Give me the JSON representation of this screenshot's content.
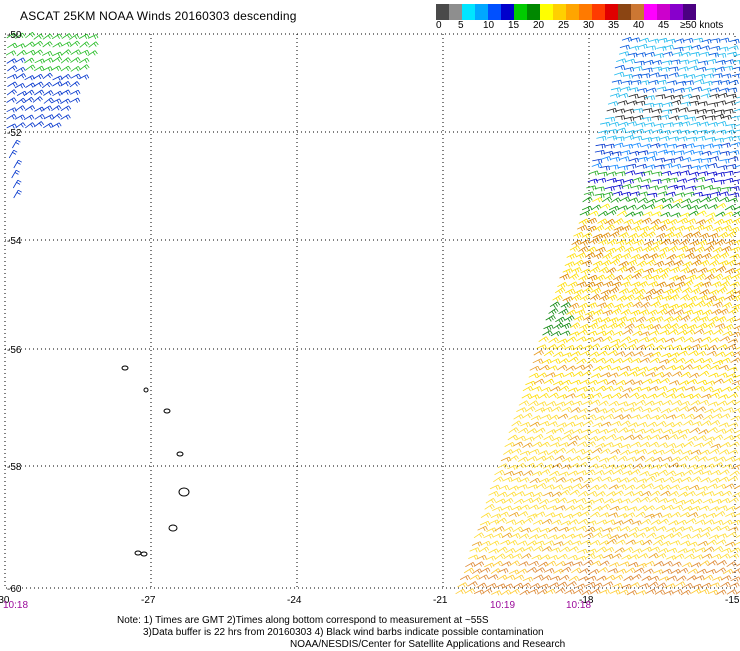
{
  "title": "ASCAT 25KM NOAA Winds 20160303 descending",
  "colorbar": {
    "colors": [
      "#4a4a4a",
      "#8e8e8e",
      "#00e5ff",
      "#00a8ff",
      "#0050ff",
      "#0000cc",
      "#00cc00",
      "#008800",
      "#ffff00",
      "#ffd000",
      "#ffa500",
      "#ff7a00",
      "#ff3b00",
      "#e00000",
      "#8b4513",
      "#cc7733",
      "#ff00ff",
      "#cc00cc",
      "#8800cc",
      "#4b0082"
    ],
    "labels": [
      "0",
      "5",
      "10",
      "15",
      "20",
      "25",
      "30",
      "35",
      "40",
      "45",
      "≥50 knots"
    ]
  },
  "axes": {
    "lat_labels": [
      "-50",
      "-52",
      "-54",
      "-56",
      "-58",
      "-60"
    ],
    "lon_labels": [
      "-30",
      "-27",
      "-24",
      "-21",
      "-18",
      "-15"
    ]
  },
  "times": [
    "10:18",
    "10:19",
    "10:18"
  ],
  "notes": [
    "Note: 1) Times are GMT 2)Times along bottom correspond to measurement at ~55S",
    "3)Data buffer is 22 hrs from 20160303 4) Black wind barbs indicate possible contamination",
    "NOAA/NESDIS/Center for Satellite Applications and Research"
  ]
}
